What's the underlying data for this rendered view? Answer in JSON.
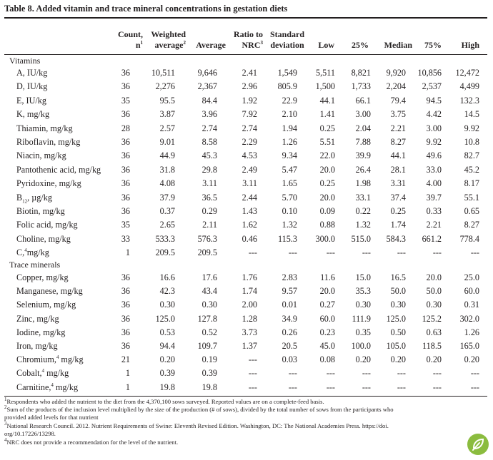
{
  "title": "Table 8. Added vitamin and trace mineral concentrations in gestation diets",
  "headers": {
    "count": "Count,",
    "count_sub": "n",
    "weighted": "Weighted",
    "weighted_sub": "average",
    "average": "Average",
    "ratio": "Ratio to",
    "ratio_sub": "NRC",
    "sd": "Standard",
    "sd_sub": "deviation",
    "low": "Low",
    "p25": "25%",
    "median": "Median",
    "p75": "75%",
    "high": "High"
  },
  "sections": {
    "vitamins": "Vitamins",
    "trace_minerals": "Trace minerals"
  },
  "vitamins": [
    {
      "label": "A, IU/kg",
      "count": "36",
      "weighted": "10,511",
      "average": "9,646",
      "ratio": "2.41",
      "sd": "1,549",
      "low": "5,511",
      "p25": "8,821",
      "median": "9,920",
      "p75": "10,856",
      "high": "12,472"
    },
    {
      "label": "D, IU/kg",
      "count": "36",
      "weighted": "2,276",
      "average": "2,367",
      "ratio": "2.96",
      "sd": "805.9",
      "low": "1,500",
      "p25": "1,733",
      "median": "2,204",
      "p75": "2,537",
      "high": "4,499"
    },
    {
      "label": "E, IU/kg",
      "count": "35",
      "weighted": "95.5",
      "average": "84.4",
      "ratio": "1.92",
      "sd": "22.9",
      "low": "44.1",
      "p25": "66.1",
      "median": "79.4",
      "p75": "94.5",
      "high": "132.3"
    },
    {
      "label": "K, mg/kg",
      "count": "36",
      "weighted": "3.87",
      "average": "3.96",
      "ratio": "7.92",
      "sd": "2.10",
      "low": "1.41",
      "p25": "3.00",
      "median": "3.75",
      "p75": "4.42",
      "high": "14.5"
    },
    {
      "label": "Thiamin, mg/kg",
      "count": "28",
      "weighted": "2.57",
      "average": "2.74",
      "ratio": "2.74",
      "sd": "1.94",
      "low": "0.25",
      "p25": "2.04",
      "median": "2.21",
      "p75": "3.00",
      "high": "9.92"
    },
    {
      "label": "Riboflavin, mg/kg",
      "count": "36",
      "weighted": "9.01",
      "average": "8.58",
      "ratio": "2.29",
      "sd": "1.26",
      "low": "5.51",
      "p25": "7.88",
      "median": "8.27",
      "p75": "9.92",
      "high": "10.8"
    },
    {
      "label": "Niacin, mg/kg",
      "count": "36",
      "weighted": "44.9",
      "average": "45.3",
      "ratio": "4.53",
      "sd": "9.34",
      "low": "22.0",
      "p25": "39.9",
      "median": "44.1",
      "p75": "49.6",
      "high": "82.7"
    },
    {
      "label": "Pantothenic acid, mg/kg",
      "count": "36",
      "weighted": "31.8",
      "average": "29.8",
      "ratio": "2.49",
      "sd": "5.47",
      "low": "20.0",
      "p25": "26.4",
      "median": "28.1",
      "p75": "33.0",
      "high": "45.2"
    },
    {
      "label": "Pyridoxine, mg/kg",
      "count": "36",
      "weighted": "4.08",
      "average": "3.11",
      "ratio": "3.11",
      "sd": "1.65",
      "low": "0.25",
      "p25": "1.98",
      "median": "3.31",
      "p75": "4.00",
      "high": "8.17"
    },
    {
      "label": "B",
      "label_sub": "12",
      "label_rest": ", µg/kg",
      "count": "36",
      "weighted": "37.9",
      "average": "36.5",
      "ratio": "2.44",
      "sd": "5.70",
      "low": "20.0",
      "p25": "33.1",
      "median": "37.4",
      "p75": "39.7",
      "high": "55.1"
    },
    {
      "label": "Biotin, mg/kg",
      "count": "36",
      "weighted": "0.37",
      "average": "0.29",
      "ratio": "1.43",
      "sd": "0.10",
      "low": "0.09",
      "p25": "0.22",
      "median": "0.25",
      "p75": "0.33",
      "high": "0.65"
    },
    {
      "label": "Folic acid, mg/kg",
      "count": "35",
      "weighted": "2.65",
      "average": "2.11",
      "ratio": "1.62",
      "sd": "1.32",
      "low": "0.88",
      "p25": "1.32",
      "median": "1.74",
      "p75": "2.21",
      "high": "8.27"
    },
    {
      "label": "Choline, mg/kg",
      "count": "33",
      "weighted": "533.3",
      "average": "576.3",
      "ratio": "0.46",
      "sd": "115.3",
      "low": "300.0",
      "p25": "515.0",
      "median": "584.3",
      "p75": "661.2",
      "high": "778.4"
    },
    {
      "label": "C,",
      "label_sup": "4",
      "label_rest": "mg/kg",
      "count": "1",
      "weighted": "209.5",
      "average": "209.5",
      "ratio": "---",
      "sd": "---",
      "low": "---",
      "p25": "---",
      "median": "---",
      "p75": "---",
      "high": "---"
    }
  ],
  "trace_minerals": [
    {
      "label": "Copper, mg/kg",
      "count": "36",
      "weighted": "16.6",
      "average": "17.6",
      "ratio": "1.76",
      "sd": "2.83",
      "low": "11.6",
      "p25": "15.0",
      "median": "16.5",
      "p75": "20.0",
      "high": "25.0"
    },
    {
      "label": "Manganese, mg/kg",
      "count": "36",
      "weighted": "42.3",
      "average": "43.4",
      "ratio": "1.74",
      "sd": "9.57",
      "low": "20.0",
      "p25": "35.3",
      "median": "50.0",
      "p75": "50.0",
      "high": "60.0"
    },
    {
      "label": "Selenium, mg/kg",
      "count": "36",
      "weighted": "0.30",
      "average": "0.30",
      "ratio": "2.00",
      "sd": "0.01",
      "low": "0.27",
      "p25": "0.30",
      "median": "0.30",
      "p75": "0.30",
      "high": "0.31"
    },
    {
      "label": "Zinc, mg/kg",
      "count": "36",
      "weighted": "125.0",
      "average": "127.8",
      "ratio": "1.28",
      "sd": "34.9",
      "low": "60.0",
      "p25": "111.9",
      "median": "125.0",
      "p75": "125.2",
      "high": "302.0"
    },
    {
      "label": "Iodine, mg/kg",
      "count": "36",
      "weighted": "0.53",
      "average": "0.52",
      "ratio": "3.73",
      "sd": "0.26",
      "low": "0.23",
      "p25": "0.35",
      "median": "0.50",
      "p75": "0.63",
      "high": "1.26"
    },
    {
      "label": "Iron, mg/kg",
      "count": "36",
      "weighted": "94.4",
      "average": "109.7",
      "ratio": "1.37",
      "sd": "20.5",
      "low": "45.0",
      "p25": "100.0",
      "median": "105.0",
      "p75": "118.5",
      "high": "165.0"
    },
    {
      "label": "Chromium,",
      "label_sup": "4",
      "label_rest": " mg/kg",
      "count": "21",
      "weighted": "0.20",
      "average": "0.19",
      "ratio": "---",
      "sd": "0.03",
      "low": "0.08",
      "p25": "0.20",
      "median": "0.20",
      "p75": "0.20",
      "high": "0.20"
    },
    {
      "label": "Cobalt,",
      "label_sup": "4",
      "label_rest": " mg/kg",
      "count": "1",
      "weighted": "0.39",
      "average": "0.39",
      "ratio": "---",
      "sd": "---",
      "low": "---",
      "p25": "---",
      "median": "---",
      "p75": "---",
      "high": "---"
    },
    {
      "label": "Carnitine,",
      "label_sup": "4",
      "label_rest": " mg/kg",
      "count": "1",
      "weighted": "19.8",
      "average": "19.8",
      "ratio": "---",
      "sd": "---",
      "low": "---",
      "p25": "---",
      "median": "---",
      "p75": "---",
      "high": "---"
    }
  ],
  "footnotes": {
    "f1": "Respondents who added the nutrient to the diet from the 4,370,100 sows surveyed. Reported values are on a complete-feed basis.",
    "f2a": "Sum of the products of the inclusion level multiplied by the size of the production (# of sows), divided by the total number of sows from the participants who",
    "f2b": "provided added levels for that nutrient",
    "f3a": "National Research Council. 2012. Nutrient Requirements of Swine: Eleventh Revised Edition. Washington, DC: The National Academies Press. https://doi.",
    "f3b": "org/10.17226/13298.",
    "f4": "NRC does not provide a recommendation for the level of the nutrient."
  },
  "logo": {
    "icon": "leaf-logo-icon",
    "color": "#8bbc3f"
  }
}
